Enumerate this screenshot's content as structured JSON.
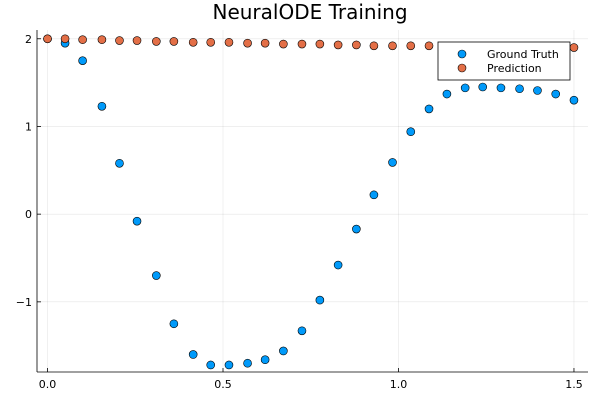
{
  "chart_data": {
    "type": "scatter",
    "title": "NeuralODE Training",
    "xlabel": "",
    "ylabel": "",
    "xlim": [
      -0.03,
      1.54
    ],
    "ylim": [
      -1.8,
      2.1
    ],
    "xticks": [
      0.0,
      0.5,
      1.0,
      1.5
    ],
    "xtick_labels": [
      "0.0",
      "0.5",
      "1.0",
      "1.5"
    ],
    "yticks": [
      -1,
      0,
      1,
      2
    ],
    "ytick_labels": [
      "−1",
      "0",
      "1",
      "2"
    ],
    "grid": true,
    "legend_position": "top-right",
    "series": [
      {
        "name": "Ground Truth",
        "color": "#009AFA",
        "x": [
          0.0,
          0.05,
          0.1,
          0.155,
          0.205,
          0.255,
          0.31,
          0.36,
          0.415,
          0.465,
          0.517,
          0.57,
          0.62,
          0.672,
          0.725,
          0.776,
          0.828,
          0.88,
          0.93,
          0.983,
          1.035,
          1.087,
          1.138,
          1.19,
          1.24,
          1.292,
          1.345,
          1.396,
          1.448,
          1.5
        ],
        "y": [
          2.0,
          1.95,
          1.75,
          1.23,
          0.58,
          -0.08,
          -0.7,
          -1.25,
          -1.6,
          -1.72,
          -1.72,
          -1.7,
          -1.66,
          -1.56,
          -1.33,
          -0.98,
          -0.58,
          -0.17,
          0.22,
          0.59,
          0.94,
          1.2,
          1.37,
          1.44,
          1.45,
          1.44,
          1.43,
          1.41,
          1.37,
          1.3
        ]
      },
      {
        "name": "Prediction",
        "color": "#E36F47",
        "x": [
          0.0,
          0.05,
          0.1,
          0.155,
          0.205,
          0.255,
          0.31,
          0.36,
          0.415,
          0.465,
          0.517,
          0.57,
          0.62,
          0.672,
          0.725,
          0.776,
          0.828,
          0.88,
          0.93,
          0.983,
          1.035,
          1.087,
          1.138,
          1.19,
          1.24,
          1.292,
          1.345,
          1.396,
          1.448,
          1.5
        ],
        "y": [
          2.0,
          2.0,
          1.99,
          1.99,
          1.98,
          1.98,
          1.97,
          1.97,
          1.96,
          1.96,
          1.96,
          1.95,
          1.95,
          1.94,
          1.94,
          1.94,
          1.93,
          1.93,
          1.92,
          1.92,
          1.92,
          1.92,
          1.91,
          1.91,
          1.91,
          1.91,
          1.9,
          1.9,
          1.9,
          1.9
        ]
      }
    ]
  }
}
